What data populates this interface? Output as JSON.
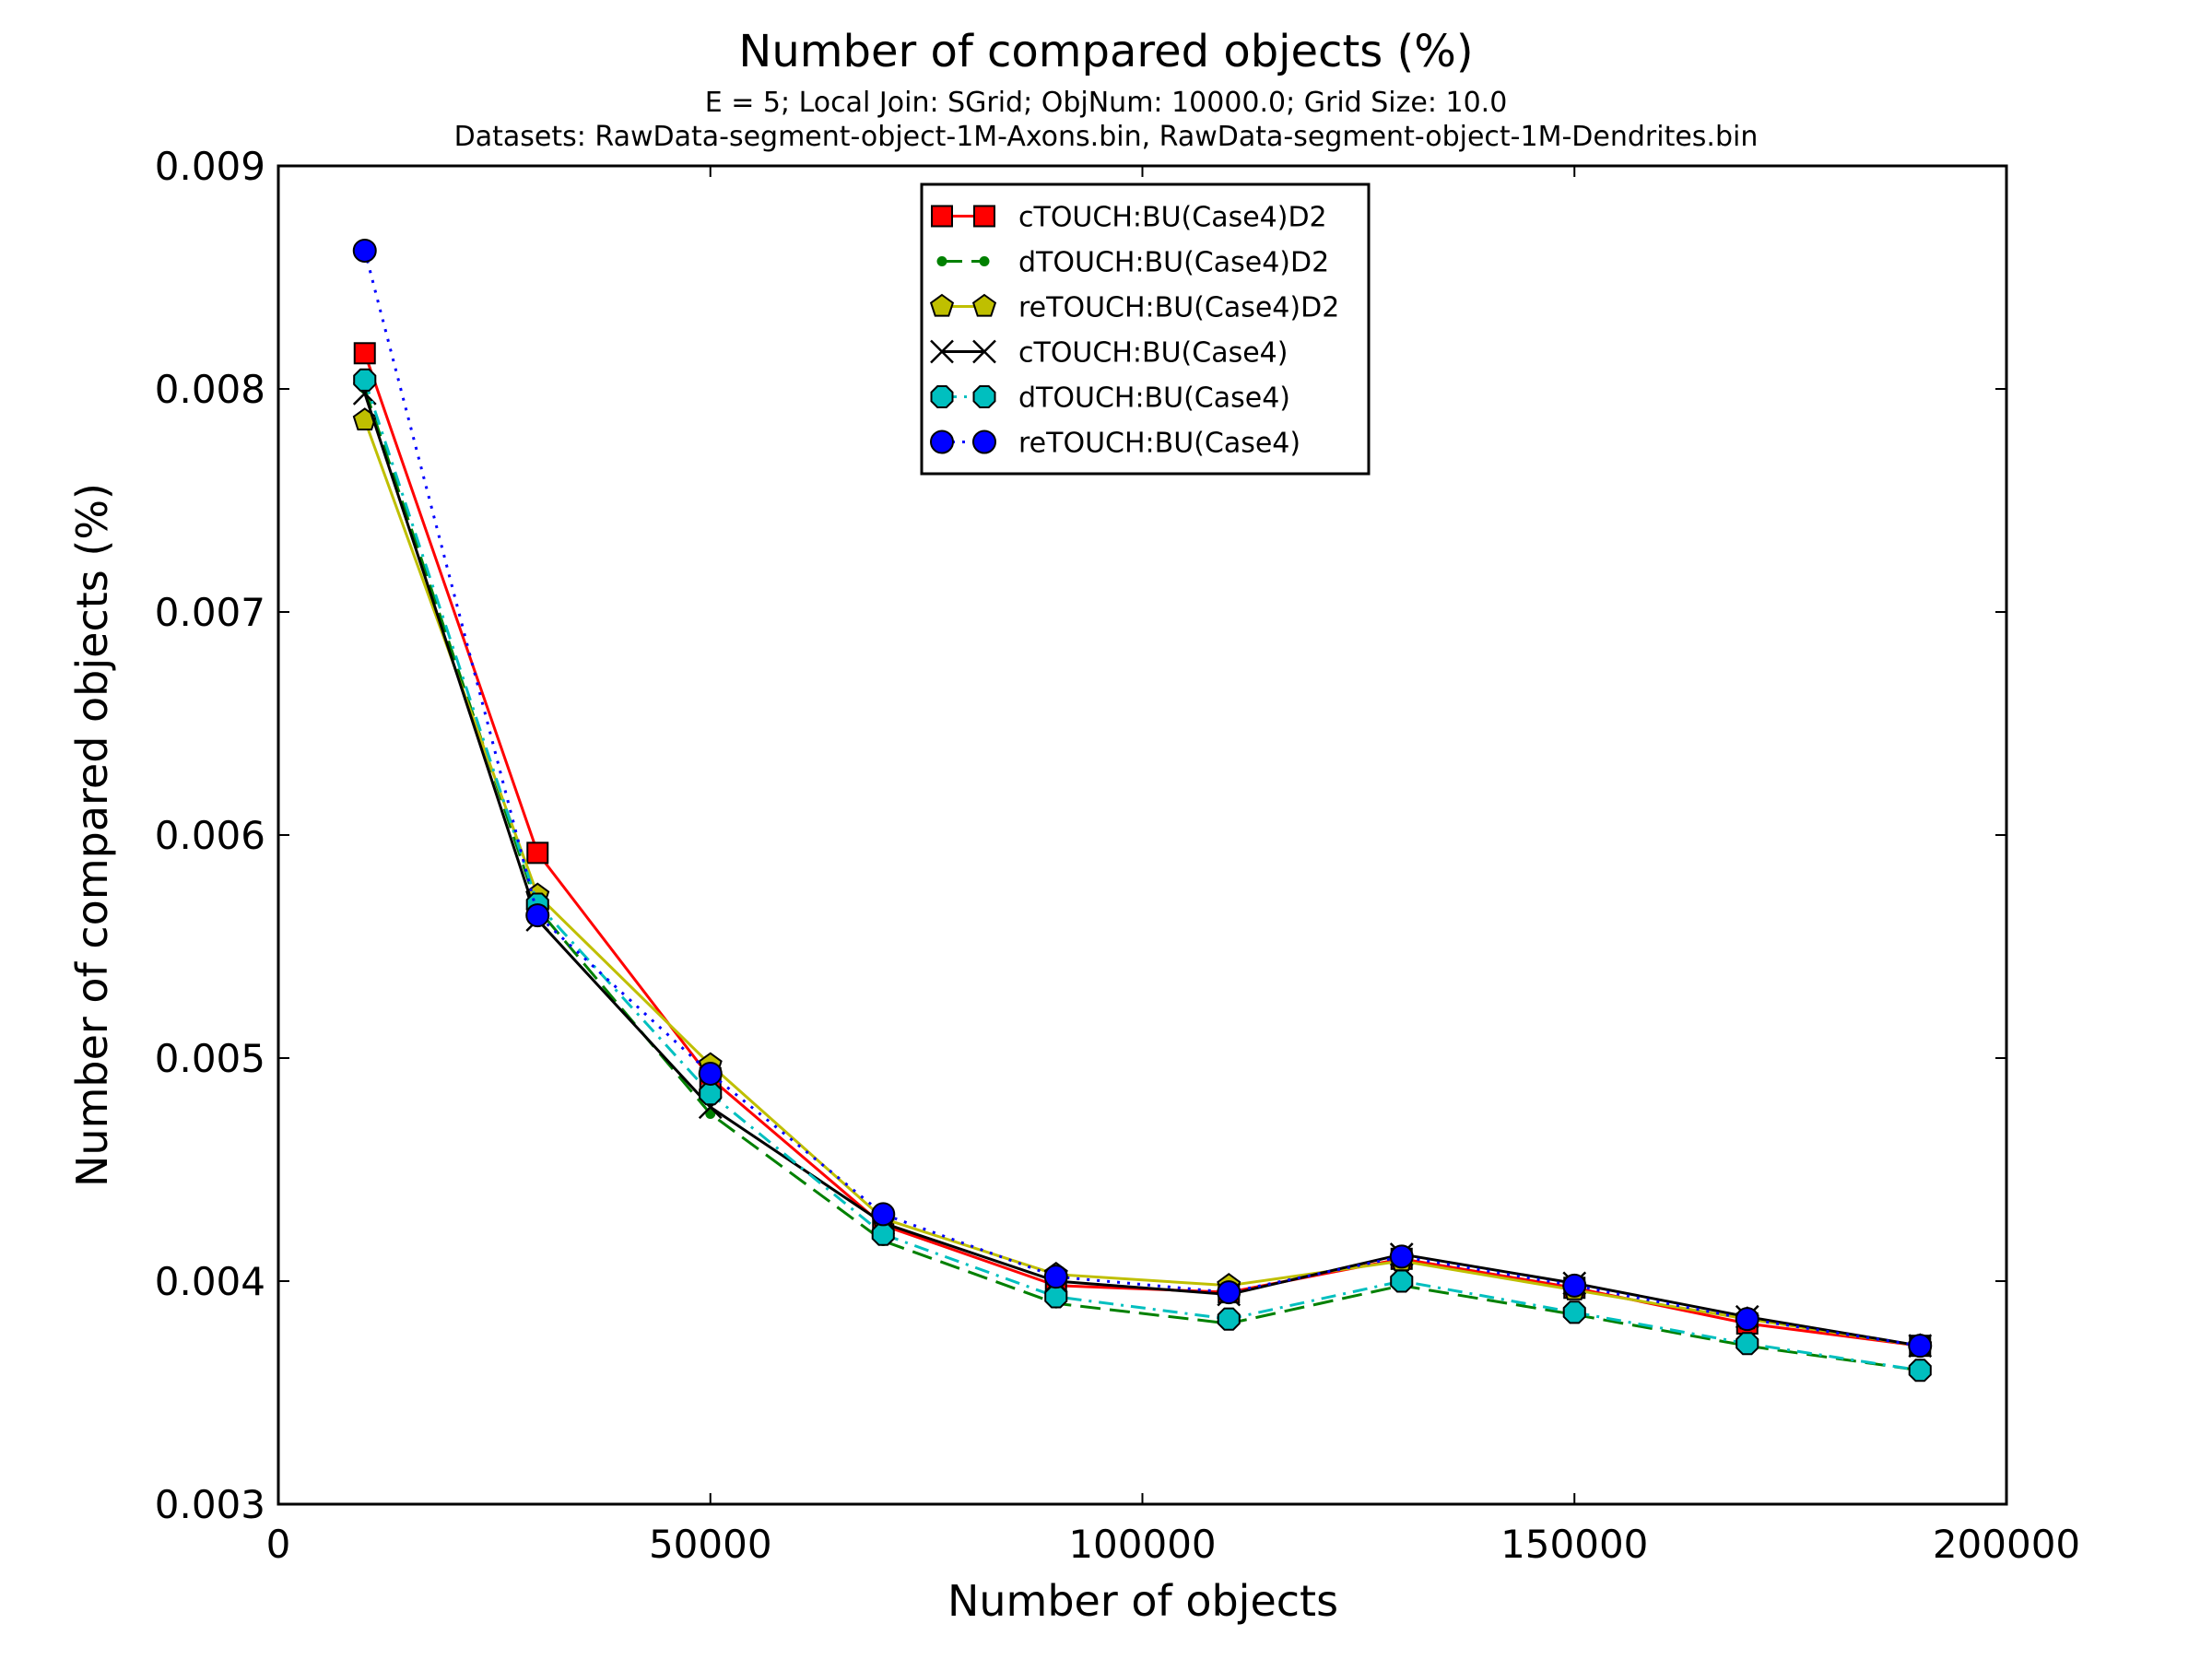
{
  "chart_data": {
    "type": "line",
    "title": "Number of compared objects (%)",
    "subtitle_lines": [
      "E = 5; Local Join: SGrid; ObjNum: 10000.0; Grid Size: 10.0",
      "Datasets: RawData-segment-object-1M-Axons.bin, RawData-segment-object-1M-Dendrites.bin"
    ],
    "xlabel": "Number of objects",
    "ylabel": "Number of compared objects (%)",
    "xlim": [
      0,
      200000
    ],
    "ylim": [
      0.003,
      0.009
    ],
    "x_ticks": [
      0,
      50000,
      100000,
      150000,
      200000
    ],
    "x_tick_labels": [
      "0",
      "50000",
      "100000",
      "150000",
      "200000"
    ],
    "y_ticks": [
      0.003,
      0.004,
      0.005,
      0.006,
      0.007,
      0.008,
      0.009
    ],
    "y_tick_labels": [
      "0.003",
      "0.004",
      "0.005",
      "0.006",
      "0.007",
      "0.008",
      "0.009"
    ],
    "grid": false,
    "legend_position": "top-center",
    "x": [
      10000,
      30000,
      50000,
      70000,
      90000,
      110000,
      130000,
      150000,
      170000,
      190000
    ],
    "series": [
      {
        "name": "cTOUCH:BU(Case4)D2",
        "color": "#ff0000",
        "marker": "square",
        "dash": "solid",
        "values": [
          0.00816,
          0.00592,
          0.00491,
          0.00425,
          0.00398,
          0.00395,
          0.0041,
          0.00397,
          0.00381,
          0.00371
        ]
      },
      {
        "name": "dTOUCH:BU(Case4)D2",
        "color": "#008000",
        "marker": "point",
        "dash": "dashed",
        "values": [
          0.008,
          0.00567,
          0.00475,
          0.00418,
          0.0039,
          0.00381,
          0.00398,
          0.00385,
          0.00371,
          0.0036
        ]
      },
      {
        "name": "reTOUCH:BU(Case4)D2",
        "color": "#bfbf00",
        "marker": "pentagon",
        "dash": "solid",
        "values": [
          0.00786,
          0.00573,
          0.00497,
          0.00428,
          0.00403,
          0.00398,
          0.00409,
          0.00396,
          0.00383,
          0.00371
        ]
      },
      {
        "name": "cTOUCH:BU(Case4)",
        "color": "#000000",
        "marker": "x",
        "dash": "solid",
        "values": [
          0.00798,
          0.00562,
          0.00478,
          0.00426,
          0.004,
          0.00394,
          0.00412,
          0.00399,
          0.00384,
          0.00371
        ]
      },
      {
        "name": "dTOUCH:BU(Case4)",
        "color": "#00bfbf",
        "marker": "octagon",
        "dash": "dashdot",
        "values": [
          0.00804,
          0.00569,
          0.00484,
          0.00421,
          0.00393,
          0.00383,
          0.004,
          0.00386,
          0.00372,
          0.0036
        ]
      },
      {
        "name": "reTOUCH:BU(Case4)",
        "color": "#0000ff",
        "marker": "circle",
        "dash": "dotted",
        "values": [
          0.00862,
          0.00564,
          0.00493,
          0.0043,
          0.00402,
          0.00395,
          0.00411,
          0.00398,
          0.00383,
          0.00371
        ]
      }
    ]
  }
}
